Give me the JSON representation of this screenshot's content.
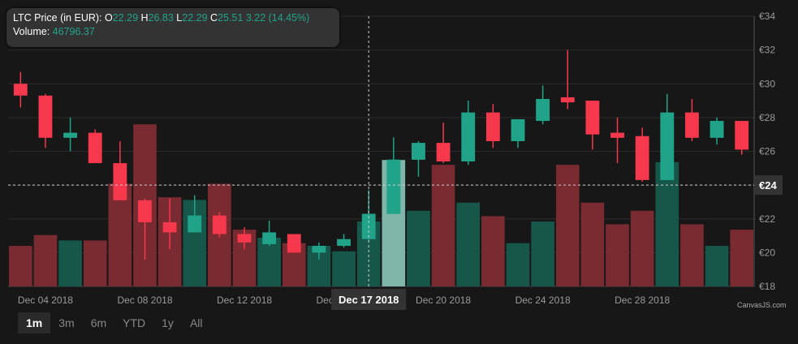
{
  "tooltip": {
    "label": "LTC Price (in EUR):",
    "o_key": "O",
    "o": "22.29",
    "h_key": "H",
    "h": "26.83",
    "l_key": "L",
    "l": "22.29",
    "c_key": "C",
    "c": "25.51",
    "change": "3.22 (14.45%)",
    "volume_label": "Volume:",
    "volume": "46796.37"
  },
  "crosshair": {
    "x_label": "Dec 17 2018",
    "y_label": "€24",
    "y_value": 24,
    "x_date": "2018-12-17"
  },
  "range_selector": {
    "buttons": [
      "1m",
      "3m",
      "6m",
      "YTD",
      "1y",
      "All"
    ],
    "active": "1m"
  },
  "credit": "CanvasJS.com",
  "colors": {
    "up": "#21a38a",
    "down": "#f5384b",
    "up_vol": "#16574a",
    "down_vol": "#7a2a31",
    "background": "#171717",
    "grid": "#2b2b2b",
    "highlight": "#7fb6a9"
  },
  "chart_data": {
    "type": "candlestick",
    "title": "",
    "y_axis": {
      "position": "right",
      "prefix": "€",
      "min": 18,
      "max": 34,
      "interval": 2,
      "ticks": [
        "€18",
        "€20",
        "€22",
        "€24",
        "€26",
        "€28",
        "€30",
        "€32",
        "€34"
      ]
    },
    "x_axis": {
      "tick_labels": [
        "Dec 04 2018",
        "Dec 08 2018",
        "Dec 12 2018",
        "Dec 16 2018",
        "Dec 20 2018",
        "Dec 24 2018",
        "Dec 28 2018"
      ],
      "tick_dates": [
        "2018-12-04",
        "2018-12-08",
        "2018-12-12",
        "2018-12-16",
        "2018-12-20",
        "2018-12-24",
        "2018-12-28"
      ],
      "start": "2018-12-03",
      "end": "2019-01-01"
    },
    "grid": true,
    "ohlc": [
      {
        "date": "2018-12-03",
        "open": 30.0,
        "high": 30.7,
        "low": 28.6,
        "close": 29.3
      },
      {
        "date": "2018-12-04",
        "open": 29.3,
        "high": 29.4,
        "low": 26.2,
        "close": 26.8
      },
      {
        "date": "2018-12-05",
        "open": 26.8,
        "high": 28.0,
        "low": 26.0,
        "close": 27.1
      },
      {
        "date": "2018-12-06",
        "open": 27.1,
        "high": 27.3,
        "low": 25.3,
        "close": 25.3
      },
      {
        "date": "2018-12-07",
        "open": 25.3,
        "high": 26.6,
        "low": 23.1,
        "close": 23.1
      },
      {
        "date": "2018-12-08",
        "open": 23.1,
        "high": 23.2,
        "low": 19.6,
        "close": 21.8
      },
      {
        "date": "2018-12-09",
        "open": 21.8,
        "high": 23.2,
        "low": 20.2,
        "close": 21.2
      },
      {
        "date": "2018-12-10",
        "open": 21.2,
        "high": 23.4,
        "low": 21.2,
        "close": 22.2
      },
      {
        "date": "2018-12-11",
        "open": 22.2,
        "high": 22.4,
        "low": 20.9,
        "close": 21.1
      },
      {
        "date": "2018-12-12",
        "open": 21.1,
        "high": 21.5,
        "low": 20.2,
        "close": 20.6
      },
      {
        "date": "2018-12-13",
        "open": 20.5,
        "high": 21.9,
        "low": 20.4,
        "close": 21.2
      },
      {
        "date": "2018-12-14",
        "open": 21.1,
        "high": 21.1,
        "low": 20.1,
        "close": 20.0
      },
      {
        "date": "2018-12-15",
        "open": 20.0,
        "high": 20.6,
        "low": 19.6,
        "close": 20.4
      },
      {
        "date": "2018-12-16",
        "open": 20.4,
        "high": 21.1,
        "low": 20.3,
        "close": 20.8
      },
      {
        "date": "2018-12-17",
        "open": 20.8,
        "high": 23.7,
        "low": 20.7,
        "close": 22.3
      },
      {
        "date": "2018-12-18",
        "open": 22.29,
        "high": 26.83,
        "low": 22.29,
        "close": 25.51
      },
      {
        "date": "2018-12-19",
        "open": 25.5,
        "high": 26.6,
        "low": 24.5,
        "close": 26.5
      },
      {
        "date": "2018-12-20",
        "open": 26.5,
        "high": 27.7,
        "low": 25.3,
        "close": 25.4
      },
      {
        "date": "2018-12-21",
        "open": 25.4,
        "high": 29.0,
        "low": 25.2,
        "close": 28.3
      },
      {
        "date": "2018-12-22",
        "open": 28.3,
        "high": 28.8,
        "low": 26.2,
        "close": 26.6
      },
      {
        "date": "2018-12-23",
        "open": 26.6,
        "high": 27.9,
        "low": 26.2,
        "close": 27.9
      },
      {
        "date": "2018-12-24",
        "open": 27.8,
        "high": 29.9,
        "low": 27.6,
        "close": 29.1
      },
      {
        "date": "2018-12-25",
        "open": 29.2,
        "high": 32.0,
        "low": 28.5,
        "close": 28.9
      },
      {
        "date": "2018-12-26",
        "open": 29.0,
        "high": 29.0,
        "low": 26.1,
        "close": 27.0
      },
      {
        "date": "2018-12-27",
        "open": 27.1,
        "high": 28.0,
        "low": 25.3,
        "close": 26.8
      },
      {
        "date": "2018-12-28",
        "open": 26.9,
        "high": 27.4,
        "low": 24.2,
        "close": 24.3
      },
      {
        "date": "2018-12-29",
        "open": 24.3,
        "high": 29.4,
        "low": 24.3,
        "close": 28.3
      },
      {
        "date": "2018-12-30",
        "open": 28.3,
        "high": 29.1,
        "low": 26.6,
        "close": 26.8
      },
      {
        "date": "2018-12-31",
        "open": 26.8,
        "high": 28.0,
        "low": 26.4,
        "close": 27.8
      },
      {
        "date": "2019-01-01",
        "open": 27.8,
        "high": 27.8,
        "low": 25.8,
        "close": 26.1
      }
    ],
    "volume": [
      {
        "date": "2018-12-03",
        "value": 15000
      },
      {
        "date": "2018-12-04",
        "value": 19000
      },
      {
        "date": "2018-12-05",
        "value": 17000
      },
      {
        "date": "2018-12-06",
        "value": 17000
      },
      {
        "date": "2018-12-07",
        "value": 38000
      },
      {
        "date": "2018-12-08",
        "value": 60000
      },
      {
        "date": "2018-12-09",
        "value": 33000
      },
      {
        "date": "2018-12-10",
        "value": 32000
      },
      {
        "date": "2018-12-11",
        "value": 38000
      },
      {
        "date": "2018-12-12",
        "value": 21000
      },
      {
        "date": "2018-12-13",
        "value": 18000
      },
      {
        "date": "2018-12-14",
        "value": 16000
      },
      {
        "date": "2018-12-15",
        "value": 15000
      },
      {
        "date": "2018-12-16",
        "value": 13000
      },
      {
        "date": "2018-12-17",
        "value": 24000
      },
      {
        "date": "2018-12-18",
        "value": 46796.37
      },
      {
        "date": "2018-12-19",
        "value": 28000
      },
      {
        "date": "2018-12-20",
        "value": 45000
      },
      {
        "date": "2018-12-21",
        "value": 31000
      },
      {
        "date": "2018-12-22",
        "value": 26000
      },
      {
        "date": "2018-12-23",
        "value": 16000
      },
      {
        "date": "2018-12-24",
        "value": 24000
      },
      {
        "date": "2018-12-25",
        "value": 45000
      },
      {
        "date": "2018-12-26",
        "value": 31000
      },
      {
        "date": "2018-12-27",
        "value": 23000
      },
      {
        "date": "2018-12-28",
        "value": 28000
      },
      {
        "date": "2018-12-29",
        "value": 46000
      },
      {
        "date": "2018-12-30",
        "value": 23000
      },
      {
        "date": "2018-12-31",
        "value": 15000
      },
      {
        "date": "2019-01-01",
        "value": 21000
      }
    ],
    "volume_max": 100000
  }
}
